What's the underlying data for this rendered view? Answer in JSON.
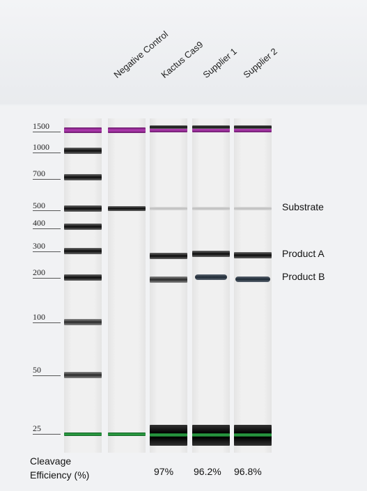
{
  "lanes": [
    "Negative Control",
    "Kactus Cas9",
    "Supplier 1",
    "Supplier 2"
  ],
  "marker_sizes": [
    "1500",
    "1000",
    "700",
    "500",
    "400",
    "300",
    "200",
    "100",
    "50",
    "25"
  ],
  "band_labels": {
    "substrate": "Substrate",
    "product_a": "Product A",
    "product_b": "Product B"
  },
  "cleavage": {
    "title_line1": "Cleavage",
    "title_line2": "Efficiency (%)",
    "values": [
      "97%",
      "96.2%",
      "96.8%"
    ]
  },
  "colors": {
    "upper_marker": "#b43cb4",
    "lower_marker": "#2eaa48"
  }
}
